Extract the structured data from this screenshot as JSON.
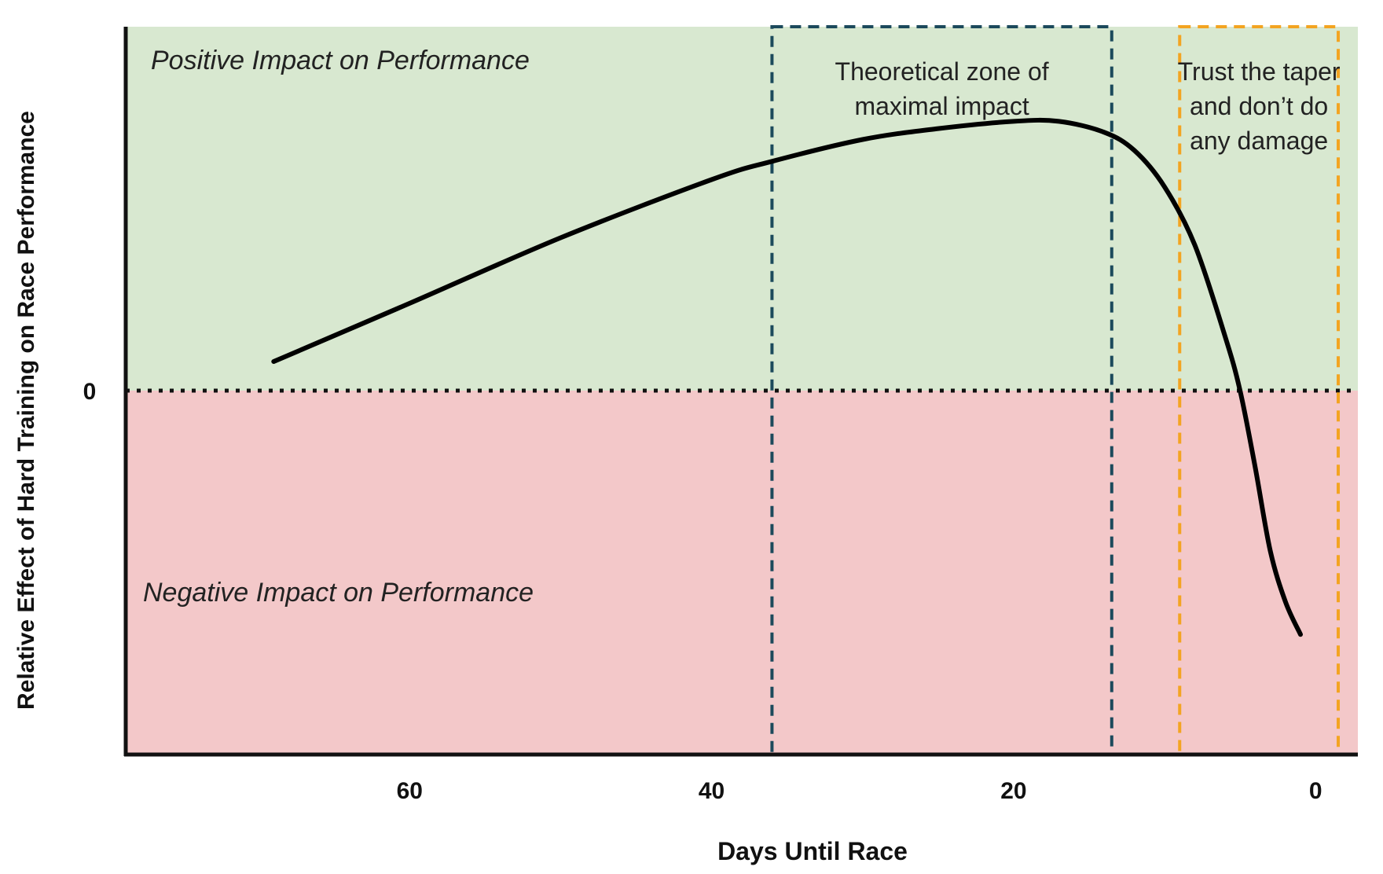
{
  "chart_data": {
    "type": "line",
    "title": "",
    "xlabel": "Days Until Race",
    "ylabel": "Relative Effect of Hard Training on Race Performance",
    "x_reversed": true,
    "xlim": [
      78.8,
      -2.8
    ],
    "ylim": [
      -1.0,
      1.0
    ],
    "xticks": [
      60,
      40,
      20,
      0
    ],
    "xtick_labels": [
      "60",
      "40",
      "20",
      "0"
    ],
    "yticks": [
      0
    ],
    "ytick_labels": [
      "0"
    ],
    "regions": {
      "positive": {
        "label": "Positive Impact on Performance",
        "color": "#d8e8d0"
      },
      "negative": {
        "label": "Negative Impact on Performance",
        "color": "#f3c8c9"
      }
    },
    "zones": [
      {
        "name": "maximal-impact-zone",
        "label_lines": [
          "Theoretical zone of",
          "maximal impact"
        ],
        "x_start": 36,
        "x_end": 13.5,
        "color": "#1c4a5c"
      },
      {
        "name": "taper-zone",
        "label_lines": [
          "Trust the taper",
          "and don’t do",
          "any damage"
        ],
        "x_start": 9,
        "x_end": -1.5,
        "color": "#f3a421"
      }
    ],
    "series": [
      {
        "name": "Effect curve",
        "color": "#000000",
        "x": [
          69,
          60,
          50,
          40,
          36,
          30,
          25,
          20,
          17,
          14,
          12,
          10,
          8,
          6,
          5,
          4,
          3,
          2,
          1
        ],
        "y": [
          0.08,
          0.24,
          0.42,
          0.58,
          0.63,
          0.69,
          0.72,
          0.74,
          0.74,
          0.71,
          0.66,
          0.56,
          0.4,
          0.15,
          0.0,
          -0.21,
          -0.44,
          -0.58,
          -0.67
        ]
      }
    ]
  }
}
